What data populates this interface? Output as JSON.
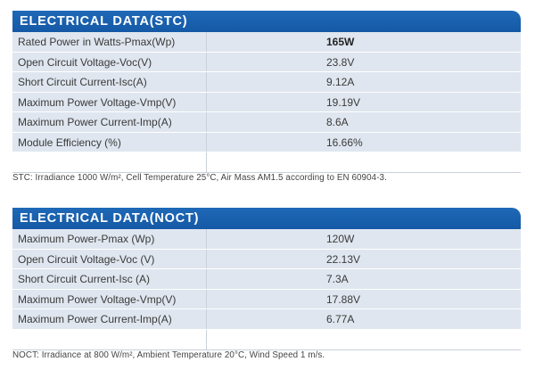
{
  "stc": {
    "title": "ELECTRICAL DATA(STC)",
    "rows": [
      {
        "label": "Rated Power in Watts-Pmax(Wp)",
        "value": "165W"
      },
      {
        "label": "Open Circuit Voltage-Voc(V)",
        "value": "23.8V"
      },
      {
        "label": "Short Circuit Current-Isc(A)",
        "value": "9.12A"
      },
      {
        "label": "Maximum Power Voltage-Vmp(V)",
        "value": "19.19V"
      },
      {
        "label": "Maximum Power Current-Imp(A)",
        "value": "8.6A"
      },
      {
        "label": "Module Efficiency (%)",
        "value": "16.66%"
      }
    ],
    "note": "STC: Irradiance 1000 W/m², Cell Temperature 25°C, Air Mass AM1.5 according to EN 60904-3."
  },
  "noct": {
    "title": "ELECTRICAL DATA(NOCT)",
    "rows": [
      {
        "label": "Maximum Power-Pmax (Wp)",
        "value": "120W"
      },
      {
        "label": "Open Circuit Voltage-Voc (V)",
        "value": "22.13V"
      },
      {
        "label": "Short Circuit Current-Isc (A)",
        "value": "7.3A"
      },
      {
        "label": "Maximum Power Voltage-Vmp(V)",
        "value": "17.88V"
      },
      {
        "label": "Maximum Power Current-Imp(A)",
        "value": "6.77A"
      }
    ],
    "note": "NOCT: Irradiance at 800 W/m², Ambient Temperature 20°C, Wind Speed 1 m/s."
  }
}
